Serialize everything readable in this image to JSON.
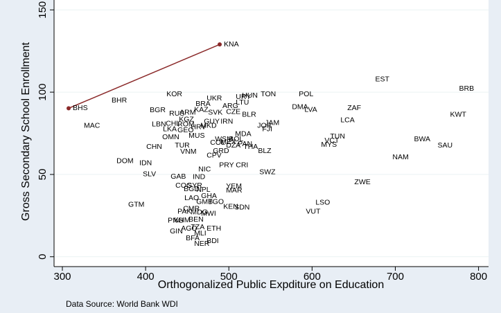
{
  "chart_data": {
    "type": "scatter",
    "x_label": "Orthogonalized Public Expditure on Education",
    "y_label": "Gross Secondary School Enrollment",
    "note": "Data Source: World Bank WDI",
    "xlim": [
      290,
      812
    ],
    "ylim": [
      -6,
      156
    ],
    "xticks": [
      300,
      400,
      500,
      600,
      700,
      800
    ],
    "yticks": [
      0,
      50,
      100,
      150
    ],
    "grid": true,
    "label_color": "#1a476f",
    "highlight_color": "#ff2a2a",
    "connected": {
      "labels": [
        "BHS",
        "KNA"
      ],
      "x": [
        307.5,
        489
      ],
      "y": [
        90.2,
        129
      ],
      "color": "#8b2a2a"
    },
    "points": [
      {
        "label": "BHR",
        "x": 355.8,
        "y": 94.9
      },
      {
        "label": "MAC",
        "x": 322.5,
        "y": 79.5
      },
      {
        "label": "BGR",
        "x": 401.7,
        "y": 88.9
      },
      {
        "label": "KOR",
        "x": 421.7,
        "y": 98.7,
        "highlight": true
      },
      {
        "label": "RUS",
        "x": 425,
        "y": 86.8
      },
      {
        "label": "ARM",
        "x": 437.5,
        "y": 87.6
      },
      {
        "label": "KAZ",
        "x": 455,
        "y": 89.3
      },
      {
        "label": "BRA",
        "x": 456.7,
        "y": 92.7,
        "highlight": true
      },
      {
        "label": "UKR",
        "x": 470,
        "y": 96.2
      },
      {
        "label": "SVK",
        "x": 471.7,
        "y": 87.6
      },
      {
        "label": "CZE",
        "x": 493.3,
        "y": 88.0
      },
      {
        "label": "ARG",
        "x": 489,
        "y": 91.5
      },
      {
        "label": "LTU",
        "x": 505,
        "y": 93.6
      },
      {
        "label": "URY",
        "x": 505,
        "y": 97
      },
      {
        "label": "HUN",
        "x": 512.5,
        "y": 97.9
      },
      {
        "label": "TON",
        "x": 535,
        "y": 98.7
      },
      {
        "label": "POL",
        "x": 580.8,
        "y": 98.7
      },
      {
        "label": "DMA",
        "x": 572.5,
        "y": 91.0
      },
      {
        "label": "LVA",
        "x": 587.5,
        "y": 89.3
      },
      {
        "label": "EST",
        "x": 672.5,
        "y": 107.7
      },
      {
        "label": "BRB",
        "x": 773.3,
        "y": 102.1
      },
      {
        "label": "ZAF",
        "x": 639,
        "y": 90.2
      },
      {
        "label": "KWT",
        "x": 762.5,
        "y": 86.3
      },
      {
        "label": "LCA",
        "x": 630.8,
        "y": 82.9
      },
      {
        "label": "BLR",
        "x": 512.5,
        "y": 86.3
      },
      {
        "label": "KGZ",
        "x": 436.7,
        "y": 83.3
      },
      {
        "label": "GUY",
        "x": 466.7,
        "y": 82.1
      },
      {
        "label": "IRN",
        "x": 486.7,
        "y": 82.1
      },
      {
        "label": "LBN",
        "x": 404.2,
        "y": 80.3
      },
      {
        "label": "CHL",
        "x": 420.8,
        "y": 80.8,
        "highlight": true
      },
      {
        "label": "LKA",
        "x": 417.5,
        "y": 77.4
      },
      {
        "label": "ROM",
        "x": 435,
        "y": 80.3
      },
      {
        "label": "HRV",
        "x": 451,
        "y": 78.6,
        "highlight": true
      },
      {
        "label": "MKD",
        "x": 462.5,
        "y": 79.5
      },
      {
        "label": "GEO",
        "x": 435,
        "y": 76.9
      },
      {
        "label": "MUS",
        "x": 448.3,
        "y": 73.5
      },
      {
        "label": "OMN",
        "x": 416.7,
        "y": 72.6
      },
      {
        "label": "MDA",
        "x": 504.2,
        "y": 74.4
      },
      {
        "label": "JOR",
        "x": 530.8,
        "y": 79.5
      },
      {
        "label": "JAM",
        "x": 540,
        "y": 81.2
      },
      {
        "label": "FJI",
        "x": 536.7,
        "y": 77.4
      },
      {
        "label": "WSM",
        "x": 480,
        "y": 71.4
      },
      {
        "label": "BOL",
        "x": 496.7,
        "y": 71.4
      },
      {
        "label": "COL",
        "x": 474.2,
        "y": 69.2,
        "highlight": true
      },
      {
        "label": "MEX",
        "x": 486.7,
        "y": 69.7,
        "highlight": true
      },
      {
        "label": "DZA",
        "x": 493.3,
        "y": 67.5
      },
      {
        "label": "PAN",
        "x": 507.5,
        "y": 68.4
      },
      {
        "label": "THA",
        "x": 514.2,
        "y": 66.7
      },
      {
        "label": "BLZ",
        "x": 531.7,
        "y": 64.1
      },
      {
        "label": "CHN",
        "x": 397.5,
        "y": 66.7,
        "highlight": true
      },
      {
        "label": "TUR",
        "x": 431.7,
        "y": 67.5,
        "highlight": true
      },
      {
        "label": "VNM",
        "x": 438.3,
        "y": 63.7
      },
      {
        "label": "GRD",
        "x": 477.5,
        "y": 64.1
      },
      {
        "label": "CPV",
        "x": 470,
        "y": 61.5
      },
      {
        "label": "TUN",
        "x": 618.3,
        "y": 73.1
      },
      {
        "label": "VCT",
        "x": 611.7,
        "y": 70.5
      },
      {
        "label": "MYS",
        "x": 607.5,
        "y": 67.9
      },
      {
        "label": "BWA",
        "x": 719.2,
        "y": 71.4
      },
      {
        "label": "SAU",
        "x": 747.5,
        "y": 67.5
      },
      {
        "label": "NAM",
        "x": 693.3,
        "y": 60.3
      },
      {
        "label": "DOM",
        "x": 361.7,
        "y": 58.1
      },
      {
        "label": "IDN",
        "x": 389.2,
        "y": 56.8
      },
      {
        "label": "PRY",
        "x": 485,
        "y": 55.6
      },
      {
        "label": "CRI",
        "x": 505,
        "y": 55.6
      },
      {
        "label": "NIC",
        "x": 460,
        "y": 53
      },
      {
        "label": "SLV",
        "x": 393.3,
        "y": 50
      },
      {
        "label": "SWZ",
        "x": 533.3,
        "y": 51.3
      },
      {
        "label": "GAB",
        "x": 426.7,
        "y": 48.7
      },
      {
        "label": "IND",
        "x": 453.3,
        "y": 48.3,
        "highlight": true
      },
      {
        "label": "ZWE",
        "x": 647.5,
        "y": 45.3
      },
      {
        "label": "COG",
        "x": 432.5,
        "y": 43.2
      },
      {
        "label": "SYR",
        "x": 446.7,
        "y": 43.2
      },
      {
        "label": "BGD",
        "x": 442.5,
        "y": 41.0
      },
      {
        "label": "NPL",
        "x": 457.5,
        "y": 40.6
      },
      {
        "label": "YEM",
        "x": 493.3,
        "y": 42.7
      },
      {
        "label": "MAR",
        "x": 493.3,
        "y": 40.2
      },
      {
        "label": "LAO",
        "x": 443.3,
        "y": 35.5
      },
      {
        "label": "GHA",
        "x": 463.3,
        "y": 36.8
      },
      {
        "label": "GMB",
        "x": 457.5,
        "y": 33.3
      },
      {
        "label": "TGO",
        "x": 471.7,
        "y": 33.3
      },
      {
        "label": "GTM",
        "x": 375.8,
        "y": 31.6
      },
      {
        "label": "KEN",
        "x": 490,
        "y": 30.3
      },
      {
        "label": "SDN",
        "x": 503.3,
        "y": 29.9
      },
      {
        "label": "LSO",
        "x": 600.8,
        "y": 32.9
      },
      {
        "label": "VUT",
        "x": 589.2,
        "y": 27.4
      },
      {
        "label": "CMR",
        "x": 441.7,
        "y": 29.1
      },
      {
        "label": "PAK",
        "x": 435,
        "y": 27.4
      },
      {
        "label": "MDG",
        "x": 451,
        "y": 26.9
      },
      {
        "label": "MWI",
        "x": 463.3,
        "y": 26.1
      },
      {
        "label": "PNG",
        "x": 423.3,
        "y": 21.8
      },
      {
        "label": "KHM",
        "x": 430.8,
        "y": 22.2
      },
      {
        "label": "BEN",
        "x": 448.3,
        "y": 22.6
      },
      {
        "label": "AGO",
        "x": 439.2,
        "y": 17.1
      },
      {
        "label": "GIN",
        "x": 425.8,
        "y": 15.4
      },
      {
        "label": "TZA",
        "x": 451,
        "y": 17.9
      },
      {
        "label": "ETH",
        "x": 470,
        "y": 17.1
      },
      {
        "label": "MLI",
        "x": 455,
        "y": 14.1
      },
      {
        "label": "BFA",
        "x": 445,
        "y": 11.1
      },
      {
        "label": "BDI",
        "x": 470,
        "y": 9.4
      },
      {
        "label": "NER",
        "x": 455,
        "y": 7.7
      }
    ]
  }
}
